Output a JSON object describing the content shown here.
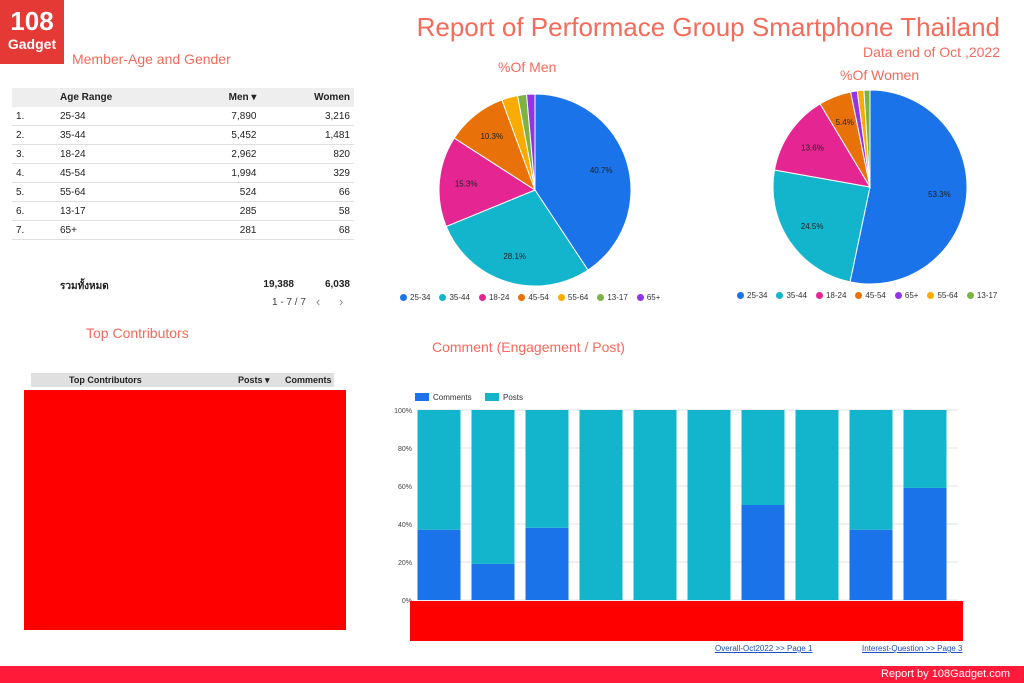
{
  "logo": {
    "line1": "108",
    "line2": "Gadget"
  },
  "header": {
    "title": "Report of Performace Group Smartphone Thailand",
    "subtitle": "Data end of Oct ,2022"
  },
  "sections": {
    "member": "Member-Age and Gender",
    "men_pie": "%Of Men",
    "women_pie": "%Of Women",
    "top_contributors": "Top Contributors",
    "comment": "Comment (Engagement / Post)"
  },
  "age_table": {
    "headers": {
      "range": "Age Range",
      "men": "Men ▾",
      "women": "Women"
    },
    "rows": [
      {
        "idx": "1.",
        "range": "25-34",
        "men": "7,890",
        "women": "3,216"
      },
      {
        "idx": "2.",
        "range": "35-44",
        "men": "5,452",
        "women": "1,481"
      },
      {
        "idx": "3.",
        "range": "18-24",
        "men": "2,962",
        "women": "820"
      },
      {
        "idx": "4.",
        "range": "45-54",
        "men": "1,994",
        "women": "329"
      },
      {
        "idx": "5.",
        "range": "55-64",
        "men": "524",
        "women": "66"
      },
      {
        "idx": "6.",
        "range": "13-17",
        "men": "285",
        "women": "58"
      },
      {
        "idx": "7.",
        "range": "65+",
        "men": "281",
        "women": "68"
      }
    ],
    "total_label": "รวมทั้งหมด",
    "total_men": "19,388",
    "total_women": "6,038",
    "pager": "1 - 7 / 7"
  },
  "contributors_table": {
    "col1": "Top Contributors",
    "col2": "Posts ▾",
    "col3": "Comments"
  },
  "links": {
    "page1": "Overall-Oct2022 >> Page 1",
    "page3": "Interest-Question >> Page 3"
  },
  "footer": "Report by 108Gadget.com",
  "chart_data": [
    {
      "type": "pie",
      "title": "%Of Men",
      "labels": [
        "25-34",
        "35-44",
        "18-24",
        "45-54",
        "55-64",
        "13-17",
        "65+"
      ],
      "values": [
        40.7,
        28.1,
        15.3,
        10.3,
        2.7,
        1.5,
        1.4
      ],
      "slice_labels": [
        "40.7%",
        "28.1%",
        "15.3%",
        "10.3%",
        "",
        "",
        ""
      ],
      "colors": [
        "#1a73e8",
        "#12b5cb",
        "#e52592",
        "#e8710a",
        "#f9ab00",
        "#7cb342",
        "#9334e6"
      ],
      "legend": "bottom"
    },
    {
      "type": "pie",
      "title": "%Of Women",
      "labels": [
        "25-34",
        "35-44",
        "18-24",
        "45-54",
        "65+",
        "55-64",
        "13-17"
      ],
      "values": [
        53.3,
        24.5,
        13.6,
        5.4,
        1.1,
        1.1,
        1.0
      ],
      "slice_labels": [
        "53.3%",
        "24.5%",
        "13.6%",
        "5.4%",
        "",
        "",
        ""
      ],
      "colors": [
        "#1a73e8",
        "#12b5cb",
        "#e52592",
        "#e8710a",
        "#9334e6",
        "#f9ab00",
        "#7cb342"
      ],
      "legend": "bottom"
    },
    {
      "type": "bar",
      "stacked": "percent",
      "title": "Comment (Engagement / Post)",
      "series": [
        {
          "name": "Comments",
          "color": "#1a73e8",
          "values": [
            37,
            19,
            38,
            0,
            0,
            0,
            50,
            0,
            37,
            59
          ]
        },
        {
          "name": "Posts",
          "color": "#12b5cb",
          "values": [
            63,
            81,
            62,
            100,
            100,
            100,
            50,
            100,
            63,
            41
          ]
        }
      ],
      "yticks": [
        "0%",
        "20%",
        "40%",
        "60%",
        "80%",
        "100%"
      ],
      "ylim": [
        0,
        100
      ],
      "grid": true,
      "legend": "top-left"
    }
  ]
}
